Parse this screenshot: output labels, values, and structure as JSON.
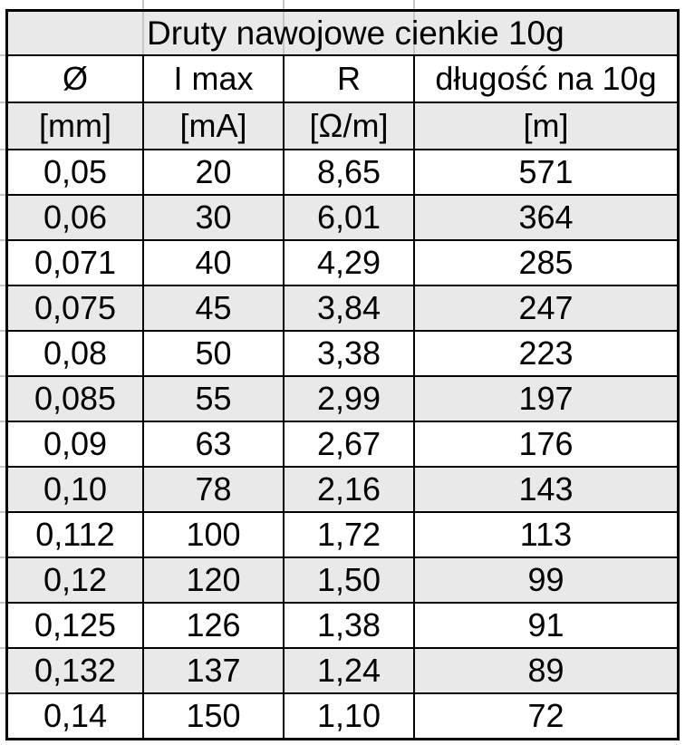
{
  "title": "Druty nawojowe cienkie 10g",
  "columns": [
    {
      "label": "Ø",
      "unit": "[mm]"
    },
    {
      "label": "I max",
      "unit": "[mA]"
    },
    {
      "label": "R",
      "unit": "[Ω/m]"
    },
    {
      "label": "długość na 10g",
      "unit": "[m]"
    }
  ],
  "rows": [
    [
      "0,05",
      "20",
      "8,65",
      "571"
    ],
    [
      "0,06",
      "30",
      "6,01",
      "364"
    ],
    [
      "0,071",
      "40",
      "4,29",
      "285"
    ],
    [
      "0,075",
      "45",
      "3,84",
      "247"
    ],
    [
      "0,08",
      "50",
      "3,38",
      "223"
    ],
    [
      "0,085",
      "55",
      "2,99",
      "197"
    ],
    [
      "0,09",
      "63",
      "2,67",
      "176"
    ],
    [
      "0,10",
      "78",
      "2,16",
      "143"
    ],
    [
      "0,112",
      "100",
      "1,72",
      "113"
    ],
    [
      "0,12",
      "120",
      "1,50",
      "99"
    ],
    [
      "0,125",
      "126",
      "1,38",
      "91"
    ],
    [
      "0,132",
      "137",
      "1,24",
      "89"
    ],
    [
      "0,14",
      "150",
      "1,10",
      "72"
    ]
  ],
  "colors": {
    "border": "#000000",
    "row_shade": "#e9e9e9",
    "faint_gridline": "#c6c6c6",
    "text": "#000000"
  }
}
